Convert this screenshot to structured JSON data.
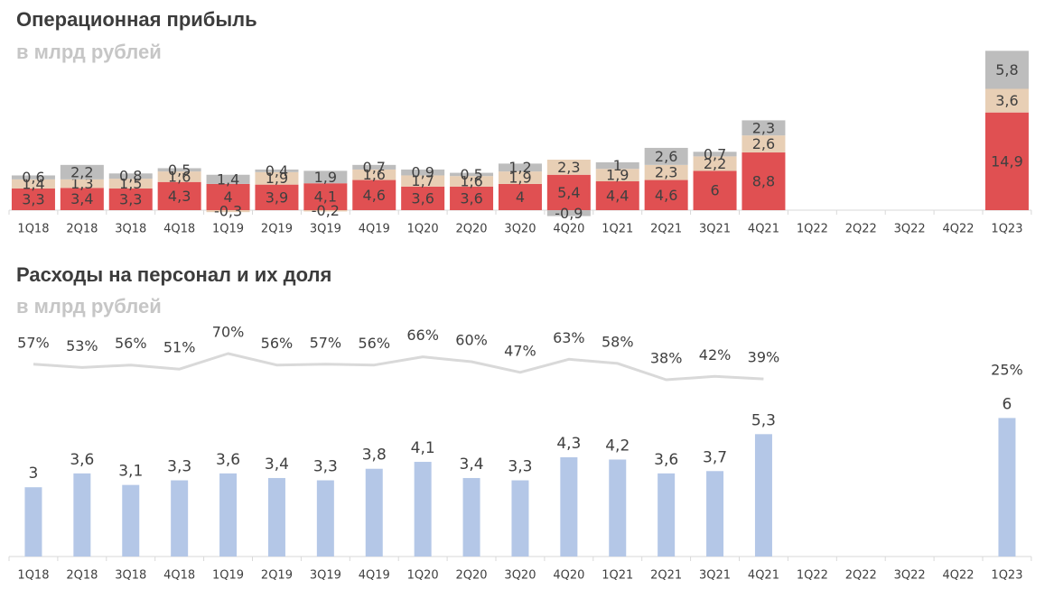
{
  "chart_data": [
    {
      "type": "bar",
      "stacked": true,
      "title": "Операционная прибыль",
      "subtitle": "в млрд рублей",
      "categories": [
        "1Q18",
        "2Q18",
        "3Q18",
        "4Q18",
        "1Q19",
        "2Q19",
        "3Q19",
        "4Q19",
        "1Q20",
        "2Q20",
        "3Q20",
        "4Q20",
        "1Q21",
        "2Q21",
        "3Q21",
        "4Q21",
        "1Q22",
        "2Q22",
        "3Q22",
        "4Q22",
        "1Q23"
      ],
      "series": [
        {
          "name": "red",
          "color": "#e05052",
          "values": [
            3.3,
            3.4,
            3.3,
            4.3,
            4,
            3.9,
            4.1,
            4.6,
            3.6,
            3.6,
            4,
            5.4,
            4.4,
            4.6,
            6,
            8.8,
            null,
            null,
            null,
            null,
            14.9
          ],
          "labels": [
            "3,3",
            "3,4",
            "3,3",
            "4,3",
            "4",
            "3,9",
            "4,1",
            "4,6",
            "3,6",
            "3,6",
            "4",
            "5,4",
            "4,4",
            "4,6",
            "6",
            "8,8",
            "",
            "",
            "",
            "",
            "14,9"
          ]
        },
        {
          "name": "beige",
          "color": "#e8cfb5",
          "values": [
            1.4,
            1.3,
            1.5,
            1.6,
            -0.3,
            1.9,
            -0.2,
            1.6,
            1.7,
            1.6,
            1.9,
            2.3,
            1.9,
            2.3,
            2.2,
            2.6,
            null,
            null,
            null,
            null,
            3.6
          ],
          "labels": [
            "1,4",
            "1,3",
            "1,5",
            "1,6",
            "-0,3",
            "1,9",
            "-0,2",
            "1,6",
            "1,7",
            "1,6",
            "1,9",
            "2,3",
            "1,9",
            "2,3",
            "2,2",
            "2,6",
            "",
            "",
            "",
            "",
            "3,6"
          ]
        },
        {
          "name": "gray",
          "color": "#bdbdbd",
          "values": [
            0.6,
            2.2,
            0.8,
            0.5,
            1.4,
            0.4,
            1.9,
            0.7,
            0.9,
            0.5,
            1.2,
            -0.9,
            1,
            2.6,
            0.7,
            2.3,
            null,
            null,
            null,
            null,
            5.8
          ],
          "labels": [
            "0,6",
            "2,2",
            "0,8",
            "0,5",
            "1,4",
            "0,4",
            "1,9",
            "0,7",
            "0,9",
            "0,5",
            "1,2",
            "-0,9",
            "1",
            "2,6",
            "0,7",
            "2,3",
            "",
            "",
            "",
            "",
            "5,8"
          ]
        }
      ]
    },
    {
      "type": "bar+line",
      "title": "Расходы на персонал и их доля",
      "subtitle": "в млрд рублей",
      "categories": [
        "1Q18",
        "2Q18",
        "3Q18",
        "4Q18",
        "1Q19",
        "2Q19",
        "3Q19",
        "4Q19",
        "1Q20",
        "2Q20",
        "3Q20",
        "4Q20",
        "1Q21",
        "2Q21",
        "3Q21",
        "4Q21",
        "1Q22",
        "2Q22",
        "3Q22",
        "4Q22",
        "1Q23"
      ],
      "bar_color": "#b4c7e7",
      "line_color": "#d9d9d9",
      "values": [
        3,
        3.6,
        3.1,
        3.3,
        3.6,
        3.4,
        3.3,
        3.8,
        4.1,
        3.4,
        3.3,
        4.3,
        4.2,
        3.6,
        3.7,
        5.3,
        null,
        null,
        null,
        null,
        6
      ],
      "value_labels": [
        "3",
        "3,6",
        "3,1",
        "3,3",
        "3,6",
        "3,4",
        "3,3",
        "3,8",
        "4,1",
        "3,4",
        "3,3",
        "4,3",
        "4,2",
        "3,6",
        "3,7",
        "5,3",
        "",
        "",
        "",
        "",
        "6"
      ],
      "share": [
        57,
        53,
        56,
        51,
        70,
        56,
        57,
        56,
        66,
        60,
        47,
        63,
        58,
        38,
        42,
        39,
        null,
        null,
        null,
        null,
        25
      ],
      "share_labels": [
        "57%",
        "53%",
        "56%",
        "51%",
        "70%",
        "56%",
        "57%",
        "56%",
        "66%",
        "60%",
        "47%",
        "63%",
        "58%",
        "38%",
        "42%",
        "39%",
        "",
        "",
        "",
        "",
        "25%"
      ]
    }
  ]
}
